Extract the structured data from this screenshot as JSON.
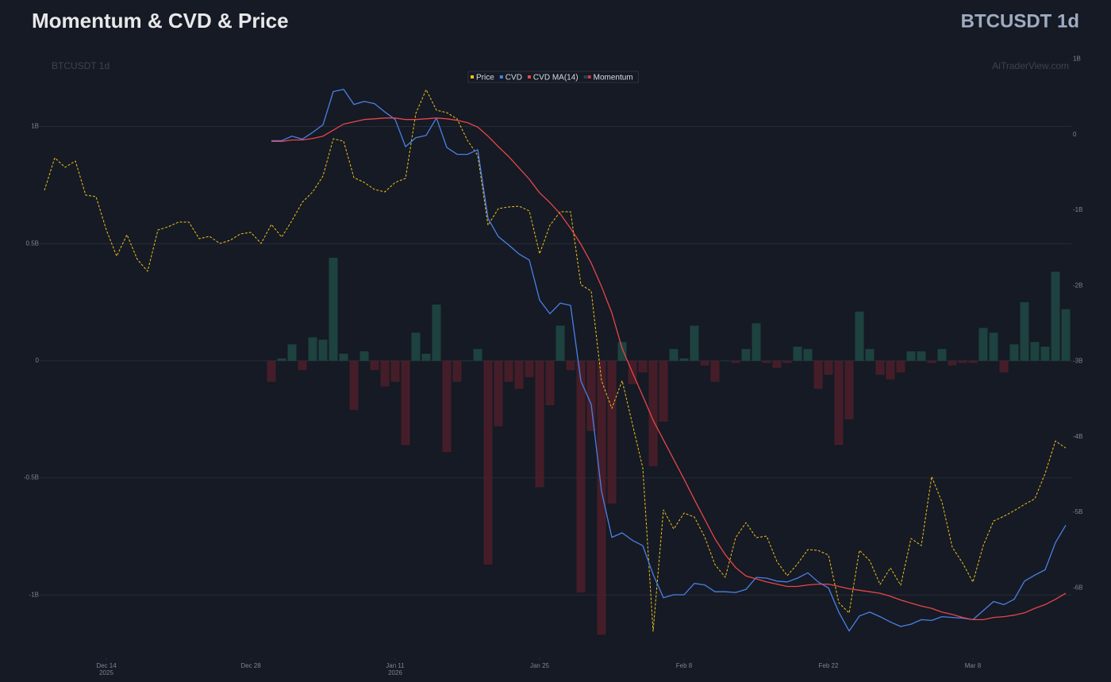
{
  "chart_data": {
    "type": "combo",
    "title": "Momentum & CVD & Price",
    "symbol_label": "BTCUSDT 1d",
    "watermark_left": "BTCUSDT 1d",
    "watermark_right": "AiTraderView.com",
    "grid": true,
    "legend_position": "top",
    "x": [
      "2025-12-08",
      "2025-12-09",
      "2025-12-10",
      "2025-12-11",
      "2025-12-12",
      "2025-12-13",
      "2025-12-14",
      "2025-12-15",
      "2025-12-16",
      "2025-12-17",
      "2025-12-18",
      "2025-12-19",
      "2025-12-20",
      "2025-12-21",
      "2025-12-22",
      "2025-12-23",
      "2025-12-24",
      "2025-12-25",
      "2025-12-26",
      "2025-12-27",
      "2025-12-28",
      "2025-12-29",
      "2025-12-30",
      "2025-12-31",
      "2026-01-01",
      "2026-01-02",
      "2026-01-03",
      "2026-01-04",
      "2026-01-05",
      "2026-01-06",
      "2026-01-07",
      "2026-01-08",
      "2026-01-09",
      "2026-01-10",
      "2026-01-11",
      "2026-01-12",
      "2026-01-13",
      "2026-01-14",
      "2026-01-15",
      "2026-01-16",
      "2026-01-17",
      "2026-01-18",
      "2026-01-19",
      "2026-01-20",
      "2026-01-21",
      "2026-01-22",
      "2026-01-23",
      "2026-01-24",
      "2026-01-25",
      "2026-01-26",
      "2026-01-27",
      "2026-01-28",
      "2026-01-29",
      "2026-01-30",
      "2026-01-31",
      "2026-02-01",
      "2026-02-02",
      "2026-02-03",
      "2026-02-04",
      "2026-02-05",
      "2026-02-06",
      "2026-02-07",
      "2026-02-08",
      "2026-02-09",
      "2026-02-10",
      "2026-02-11",
      "2026-02-12",
      "2026-02-13",
      "2026-02-14",
      "2026-02-15",
      "2026-02-16",
      "2026-02-17",
      "2026-02-18",
      "2026-02-19",
      "2026-02-20",
      "2026-02-21",
      "2026-02-22",
      "2026-02-23",
      "2026-02-24",
      "2026-02-25",
      "2026-02-26",
      "2026-02-27",
      "2026-02-28",
      "2026-03-01",
      "2026-03-02",
      "2026-03-03",
      "2026-03-04",
      "2026-03-05",
      "2026-03-06",
      "2026-03-07",
      "2026-03-08",
      "2026-03-09",
      "2026-03-10",
      "2026-03-11",
      "2026-03-12",
      "2026-03-13",
      "2026-03-14",
      "2026-03-15",
      "2026-03-16",
      "2026-03-17"
    ],
    "xticks": [
      {
        "value": "2025-12-14",
        "label": "Dec 14",
        "year": "2025"
      },
      {
        "value": "2025-12-28",
        "label": "Dec 28"
      },
      {
        "value": "2026-01-11",
        "label": "Jan 11",
        "year": "2026"
      },
      {
        "value": "2026-01-25",
        "label": "Jan 25"
      },
      {
        "value": "2026-02-08",
        "label": "Feb 8"
      },
      {
        "value": "2026-02-22",
        "label": "Feb 22"
      },
      {
        "value": "2026-03-08",
        "label": "Mar 8"
      }
    ],
    "ylim": [
      -1.27,
      1.32
    ],
    "yticks": [
      {
        "value": 1,
        "label": "1B"
      },
      {
        "value": 0.5,
        "label": "0.5B"
      },
      0,
      {
        "value": -0.5,
        "label": "-0.5B"
      },
      {
        "value": -1,
        "label": "-1B"
      }
    ],
    "y2lim": [
      -6.93,
      1.1
    ],
    "y2ticks": [
      {
        "value": 1,
        "label": "1B"
      },
      0,
      {
        "value": -1,
        "label": "-1B"
      },
      {
        "value": -2,
        "label": "-2B"
      },
      {
        "value": -3,
        "label": "-3B"
      },
      {
        "value": -4,
        "label": "-4B"
      },
      {
        "value": -5,
        "label": "-5B"
      },
      {
        "value": -6,
        "label": "-6B"
      }
    ],
    "y3lim": [
      60000,
      98250
    ],
    "series": [
      {
        "name": "Price",
        "type": "line",
        "axis": "y3",
        "dashed": true,
        "color": "#f2c21b",
        "values": [
          89500,
          91550,
          90950,
          91350,
          89200,
          89100,
          87000,
          85350,
          86700,
          85150,
          84400,
          87000,
          87200,
          87500,
          87500,
          86450,
          86600,
          86150,
          86350,
          86750,
          86850,
          86150,
          87350,
          86550,
          87600,
          88750,
          89400,
          90400,
          92750,
          92600,
          90300,
          90000,
          89550,
          89400,
          90000,
          90250,
          94350,
          95850,
          94550,
          94400,
          94000,
          92650,
          91700,
          87300,
          88350,
          88450,
          88500,
          88200,
          85500,
          87300,
          88150,
          88150,
          83550,
          83150,
          77500,
          75750,
          77500,
          74750,
          72000,
          61700,
          69350,
          68150,
          69150,
          68900,
          67650,
          65900,
          65100,
          67600,
          68550,
          67600,
          67700,
          66100,
          65200,
          65950,
          66850,
          66800,
          66500,
          63500,
          62850,
          66800,
          66150,
          64650,
          65700,
          64600,
          67550,
          67100,
          71450,
          69850,
          67000,
          66000,
          64800,
          67100,
          68650,
          68950,
          69300,
          69700,
          70050,
          71650,
          73700,
          73250
        ]
      },
      {
        "name": "CVD",
        "type": "line",
        "axis": "y2",
        "color": "#4a80e8",
        "values": [
          null,
          null,
          null,
          null,
          null,
          null,
          null,
          null,
          null,
          null,
          null,
          null,
          null,
          null,
          null,
          null,
          null,
          null,
          null,
          null,
          null,
          null,
          -0.08,
          -0.08,
          -0.02,
          -0.06,
          0.03,
          0.13,
          0.57,
          0.6,
          0.4,
          0.44,
          0.41,
          0.3,
          0.2,
          -0.16,
          -0.04,
          -0.01,
          0.22,
          -0.17,
          -0.26,
          -0.26,
          -0.2,
          -1.11,
          -1.35,
          -1.46,
          -1.58,
          -1.66,
          -2.19,
          -2.37,
          -2.23,
          -2.26,
          -3.26,
          -3.57,
          -4.72,
          -5.33,
          -5.27,
          -5.37,
          -5.44,
          -5.82,
          -6.13,
          -6.09,
          -6.09,
          -5.94,
          -5.96,
          -6.05,
          -6.05,
          -6.06,
          -6.02,
          -5.86,
          -5.87,
          -5.91,
          -5.92,
          -5.87,
          -5.8,
          -5.92,
          -6.0,
          -6.32,
          -6.57,
          -6.37,
          -6.32,
          -6.38,
          -6.45,
          -6.51,
          -6.48,
          -6.42,
          -6.43,
          -6.38,
          -6.39,
          -6.4,
          -6.42,
          -6.3,
          -6.18,
          -6.22,
          -6.15,
          -5.91,
          -5.83,
          -5.76,
          -5.4,
          -5.17
        ]
      },
      {
        "name": "CVD MA(14)",
        "type": "line",
        "axis": "y2",
        "color": "#e8454a",
        "values": [
          null,
          null,
          null,
          null,
          null,
          null,
          null,
          null,
          null,
          null,
          null,
          null,
          null,
          null,
          null,
          null,
          null,
          null,
          null,
          null,
          null,
          null,
          -0.09,
          -0.09,
          -0.07,
          -0.07,
          -0.05,
          -0.02,
          0.06,
          0.14,
          0.17,
          0.2,
          0.21,
          0.22,
          0.22,
          0.2,
          0.2,
          0.21,
          0.22,
          0.21,
          0.19,
          0.16,
          0.1,
          -0.02,
          -0.16,
          -0.29,
          -0.44,
          -0.59,
          -0.77,
          -0.9,
          -1.05,
          -1.24,
          -1.45,
          -1.7,
          -2.01,
          -2.36,
          -2.83,
          -3.15,
          -3.46,
          -3.78,
          -4.04,
          -4.3,
          -4.56,
          -4.83,
          -5.09,
          -5.35,
          -5.56,
          -5.73,
          -5.84,
          -5.88,
          -5.92,
          -5.95,
          -5.98,
          -5.98,
          -5.96,
          -5.95,
          -5.95,
          -5.98,
          -6.01,
          -6.03,
          -6.05,
          -6.07,
          -6.11,
          -6.16,
          -6.2,
          -6.24,
          -6.27,
          -6.32,
          -6.35,
          -6.39,
          -6.42,
          -6.42,
          -6.39,
          -6.38,
          -6.36,
          -6.33,
          -6.27,
          -6.22,
          -6.15,
          -6.07
        ]
      },
      {
        "name": "Momentum",
        "type": "bar",
        "axis": "y",
        "color": "#1e4a44",
        "negative_color": "#4e1f29",
        "values": [
          null,
          null,
          null,
          null,
          null,
          null,
          null,
          null,
          null,
          null,
          null,
          null,
          null,
          null,
          null,
          null,
          null,
          null,
          null,
          null,
          null,
          null,
          -0.09,
          0.01,
          0.07,
          -0.04,
          0.1,
          0.09,
          0.44,
          0.03,
          -0.21,
          0.04,
          -0.04,
          -0.11,
          -0.09,
          -0.36,
          0.12,
          0.03,
          0.24,
          -0.39,
          -0.09,
          0.0,
          0.05,
          -0.87,
          -0.28,
          -0.09,
          -0.12,
          -0.07,
          -0.54,
          -0.19,
          0.15,
          -0.04,
          -0.99,
          -0.3,
          -1.17,
          -0.61,
          0.08,
          -0.1,
          -0.05,
          -0.45,
          -0.26,
          0.05,
          0.01,
          0.15,
          -0.02,
          -0.09,
          0.0,
          -0.01,
          0.05,
          0.16,
          -0.01,
          -0.03,
          -0.01,
          0.06,
          0.05,
          -0.12,
          -0.06,
          -0.36,
          -0.25,
          0.21,
          0.05,
          -0.06,
          -0.08,
          -0.05,
          0.04,
          0.04,
          -0.01,
          0.05,
          -0.02,
          -0.01,
          -0.01,
          0.14,
          0.12,
          -0.05,
          0.07,
          0.25,
          0.08,
          0.06,
          0.38,
          0.22
        ]
      }
    ]
  }
}
